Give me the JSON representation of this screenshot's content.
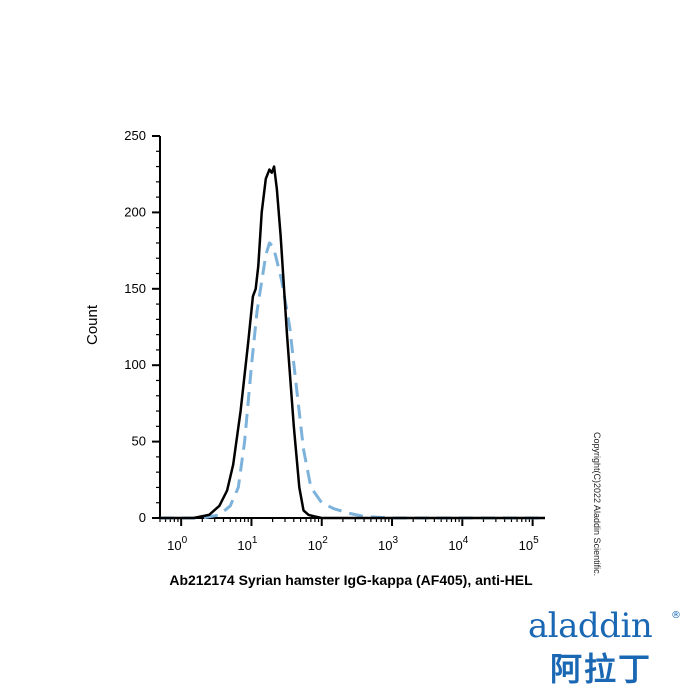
{
  "chart_data": {
    "type": "line",
    "title": "",
    "xlabel": "Ab212174 Syrian hamster IgG-kappa (AF405), anti-HEL",
    "ylabel": "Count",
    "x_scale": "log",
    "xlim": [
      0.5,
      150000
    ],
    "ylim": [
      0,
      250
    ],
    "y_ticks": [
      0,
      50,
      100,
      150,
      200,
      250
    ],
    "x_ticks": [
      {
        "value": 1,
        "base": "10",
        "exp": "0"
      },
      {
        "value": 10,
        "base": "10",
        "exp": "1"
      },
      {
        "value": 100,
        "base": "10",
        "exp": "2"
      },
      {
        "value": 1000,
        "base": "10",
        "exp": "3"
      },
      {
        "value": 10000,
        "base": "10",
        "exp": "4"
      },
      {
        "value": 100000,
        "base": "10",
        "exp": "5"
      }
    ],
    "grid": false,
    "series": [
      {
        "color": "#000000",
        "dash": "solid",
        "points": [
          [
            0.5,
            0
          ],
          [
            1.5,
            0
          ],
          [
            2.5,
            2
          ],
          [
            3.5,
            8
          ],
          [
            4.5,
            18
          ],
          [
            5.5,
            35
          ],
          [
            7,
            70
          ],
          [
            9,
            115
          ],
          [
            10.5,
            145
          ],
          [
            11.5,
            150
          ],
          [
            12.5,
            165
          ],
          [
            14,
            200
          ],
          [
            16,
            222
          ],
          [
            18,
            228
          ],
          [
            19.5,
            226
          ],
          [
            21,
            230
          ],
          [
            23,
            215
          ],
          [
            26,
            185
          ],
          [
            32,
            120
          ],
          [
            40,
            60
          ],
          [
            48,
            20
          ],
          [
            55,
            5
          ],
          [
            65,
            2
          ],
          [
            80,
            1
          ],
          [
            100,
            0
          ],
          [
            1000,
            0
          ],
          [
            10000,
            0
          ],
          [
            150000,
            0
          ]
        ]
      },
      {
        "color": "#7db2db",
        "dash": "dashed",
        "points": [
          [
            0.5,
            0
          ],
          [
            2,
            0
          ],
          [
            3.5,
            2
          ],
          [
            5,
            8
          ],
          [
            6.5,
            20
          ],
          [
            8,
            50
          ],
          [
            10,
            100
          ],
          [
            12,
            135
          ],
          [
            14,
            155
          ],
          [
            16,
            172
          ],
          [
            18,
            180
          ],
          [
            20,
            178
          ],
          [
            22,
            172
          ],
          [
            27,
            155
          ],
          [
            35,
            125
          ],
          [
            45,
            80
          ],
          [
            55,
            45
          ],
          [
            70,
            20
          ],
          [
            100,
            10
          ],
          [
            150,
            6
          ],
          [
            250,
            3
          ],
          [
            400,
            1
          ],
          [
            1000,
            0
          ],
          [
            10000,
            0
          ],
          [
            150000,
            0
          ]
        ]
      }
    ]
  },
  "watermark": {
    "copyright": "Copyright(C)2022 Aladdin Scientific.",
    "logo_latin": "aladdin",
    "logo_cn": "阿拉丁",
    "logo_reg": "®",
    "logo_colors": [
      "#1a68b4",
      "#c9a227"
    ]
  }
}
